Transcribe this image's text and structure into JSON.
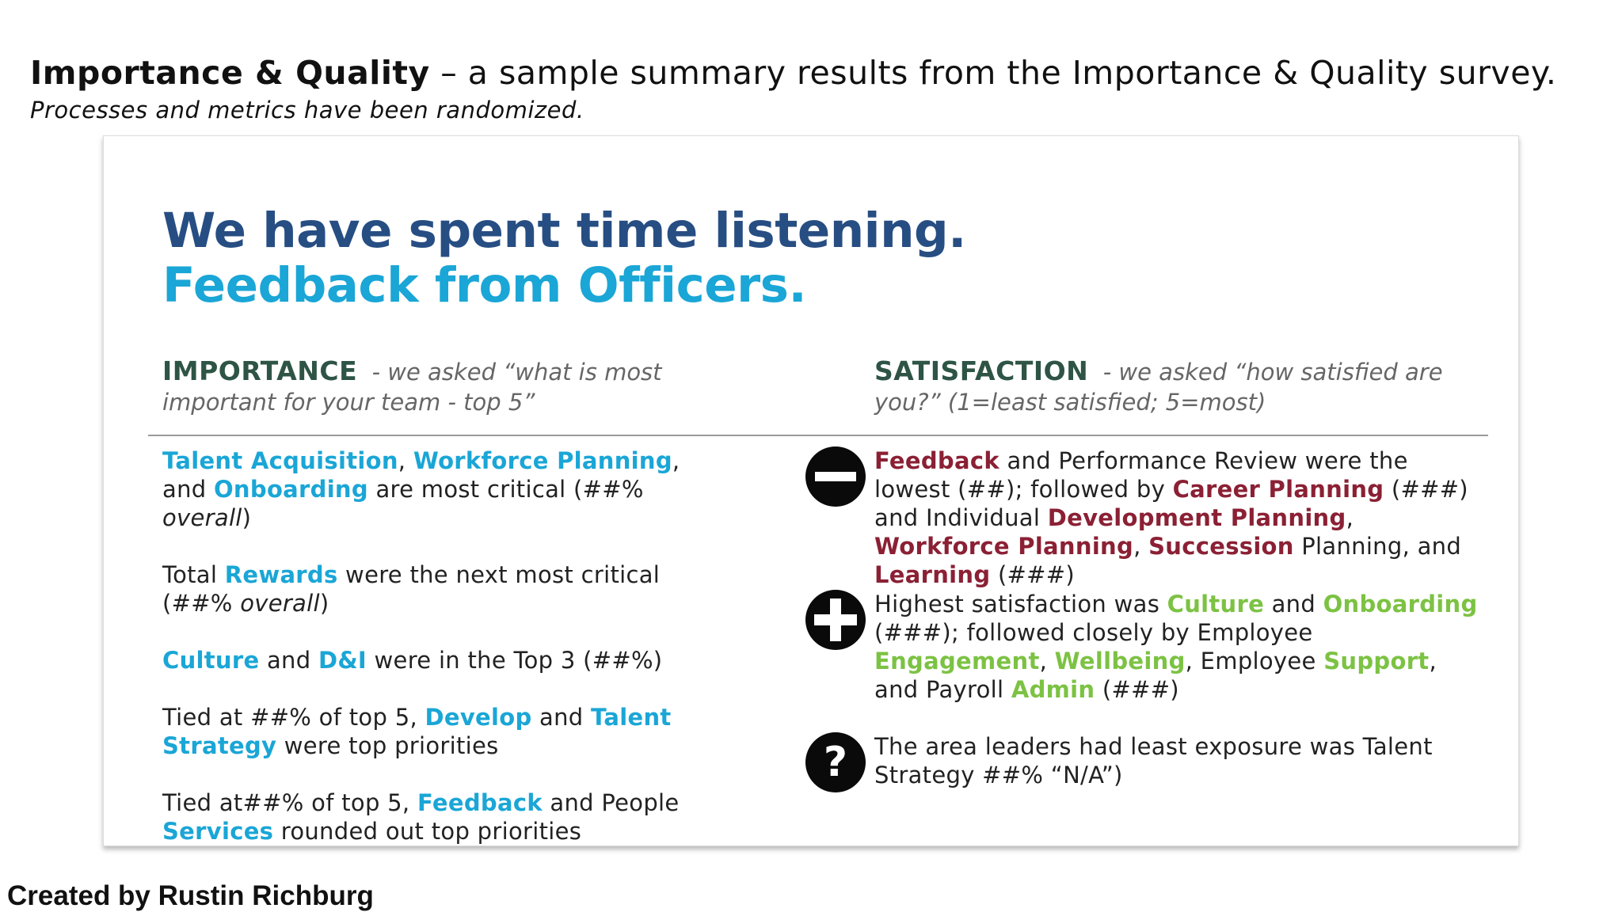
{
  "header": {
    "title_bold": "Importance & Quality",
    "title_rest": " – a sample summary results from the Importance & Quality survey.",
    "subtitle": "Processes and metrics have been randomized."
  },
  "slide": {
    "heading_line1": "We have spent time listening.",
    "heading_line2": "Feedback from Officers.",
    "importance": {
      "title": "IMPORTANCE",
      "question": "- we asked “what is most important for your team - top 5”",
      "items": [
        {
          "t1": "Talent Acquisition",
          "t2": ", ",
          "t3": "Workforce Planning",
          "t4": ", and ",
          "t5": "Onboarding",
          "t6": " are most critical (##% ",
          "t7": "overall",
          "t8": ")"
        },
        {
          "t1": "Total ",
          "t2": "Rewards",
          "t3": " were the next most critical (##% ",
          "t4": "overall",
          "t5": ")"
        },
        {
          "t1": "Culture",
          "t2": " and ",
          "t3": "D&I",
          "t4": " were in the Top 3 (##%)"
        },
        {
          "t1": "Tied at ##% of top 5, ",
          "t2": "Develop",
          "t3": " and ",
          "t4": "Talent Strategy",
          "t5": " were top priorities"
        },
        {
          "t1": "Tied at##% of top 5, ",
          "t2": "Feedback",
          "t3": " and People ",
          "t4": "Services",
          "t5": " rounded out top priorities"
        }
      ]
    },
    "satisfaction": {
      "title": "SATISFACTION",
      "question": "- we asked “how satisfied are you?” (1=least satisfied; 5=most)",
      "items": [
        {
          "icon": "minus-circle-icon",
          "t1": "Feedback",
          "t2": " and Performance Review were the lowest (##); followed by ",
          "t3": "Career Planning",
          "t4": " (###) and Individual ",
          "t5": "Development Planning",
          "t6": ", ",
          "t7": "Workforce Planning",
          "t8": ", ",
          "t9": "Succession",
          "t10": " Planning, and ",
          "t11": "Learning",
          "t12": " (###)"
        },
        {
          "icon": "plus-circle-icon",
          "t1": "Highest satisfaction was ",
          "t2": "Culture",
          "t3": " and ",
          "t4": "Onboarding",
          "t5": " (###); followed closely by Employee ",
          "t6": "Engagement",
          "t7": ", ",
          "t8": "Wellbeing",
          "t9": ", Employee ",
          "t10": "Support",
          "t11": ", and Payroll ",
          "t12": "Admin",
          "t13": " (###)"
        },
        {
          "icon": "question-circle-icon",
          "glyph": "?",
          "t1": "The area leaders had least exposure was Talent Strategy ##% “N/A”)"
        }
      ]
    }
  },
  "credit": "Created by Rustin Richburg",
  "colors": {
    "heading_dark_blue": "#274e83",
    "heading_light_blue": "#1aa6d6",
    "section_title_green": "#2e5446",
    "low_red": "#8b2034",
    "high_green": "#7cc243"
  }
}
